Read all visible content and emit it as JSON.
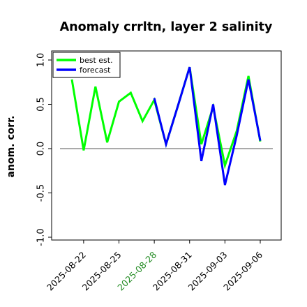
{
  "chart_data": {
    "type": "line",
    "title": "Anomaly crrltn, layer 2 salinity",
    "xlabel": "",
    "ylabel": "anom. corr.",
    "ylim": [
      -1.0,
      1.0
    ],
    "yticks": [
      "-1.0",
      "-0.5",
      "0.0",
      "0.5",
      "1.0"
    ],
    "x_tick_labels": [
      "2025-08-22",
      "2025-08-25",
      "2025-08-28",
      "2025-08-31",
      "2025-09-03",
      "2025-09-06"
    ],
    "x_tick_label_colors": [
      "#000000",
      "#000000",
      "#228B22",
      "#000000",
      "#000000",
      "#000000"
    ],
    "x": [
      "2025-08-21",
      "2025-08-22",
      "2025-08-23",
      "2025-08-24",
      "2025-08-25",
      "2025-08-26",
      "2025-08-27",
      "2025-08-28",
      "2025-08-29",
      "2025-08-30",
      "2025-08-31",
      "2025-09-01",
      "2025-09-02",
      "2025-09-03",
      "2025-09-04",
      "2025-09-05",
      "2025-09-06"
    ],
    "zero_line": true,
    "grid": false,
    "legend_position": "upper-left",
    "series": [
      {
        "name": "best est.",
        "color": "#00ff00",
        "values": [
          0.78,
          -0.02,
          0.7,
          0.07,
          0.53,
          0.63,
          0.31,
          0.55,
          0.05,
          0.48,
          0.92,
          0.05,
          0.47,
          -0.19,
          0.2,
          0.82,
          0.08
        ]
      },
      {
        "name": "forecast",
        "color": "#0000ff",
        "values": [
          null,
          null,
          null,
          null,
          null,
          null,
          null,
          0.57,
          0.05,
          0.48,
          0.92,
          -0.14,
          0.5,
          -0.41,
          0.15,
          0.78,
          0.09
        ]
      }
    ]
  }
}
